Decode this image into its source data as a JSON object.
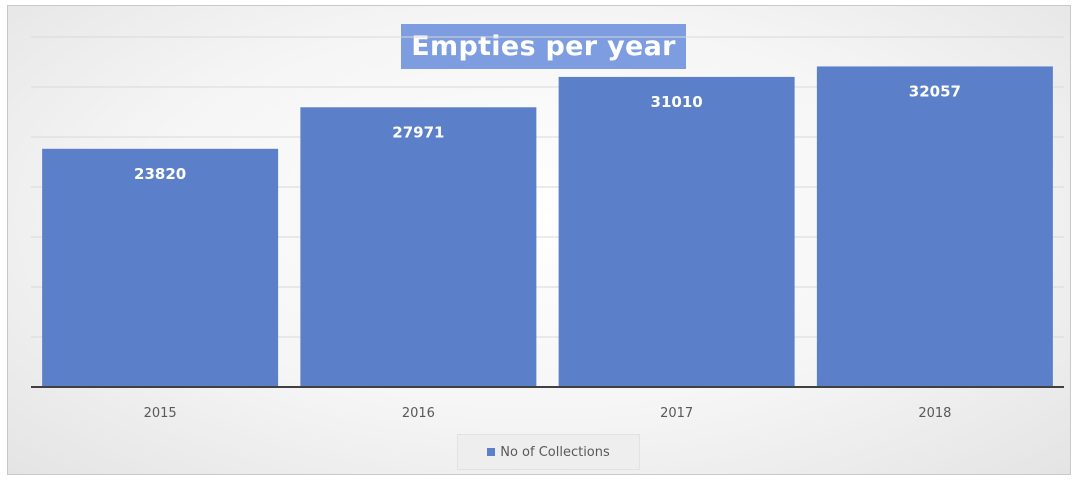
{
  "colors": {
    "bar": "#5b80c9",
    "title_background": "#7d9de0",
    "gridline": "#d9d9d9",
    "axis_line": "#404040"
  },
  "chart_data": {
    "type": "bar",
    "title": "Empties per year",
    "categories": [
      "2015",
      "2016",
      "2017",
      "2018"
    ],
    "series": [
      {
        "name": "No of Collections",
        "values": [
          23820,
          27971,
          31010,
          32057
        ]
      }
    ],
    "ylim": [
      0,
      35000
    ],
    "grid": true,
    "legend_position": "bottom",
    "data_labels": [
      "23820",
      "27971",
      "31010",
      "32057"
    ]
  }
}
